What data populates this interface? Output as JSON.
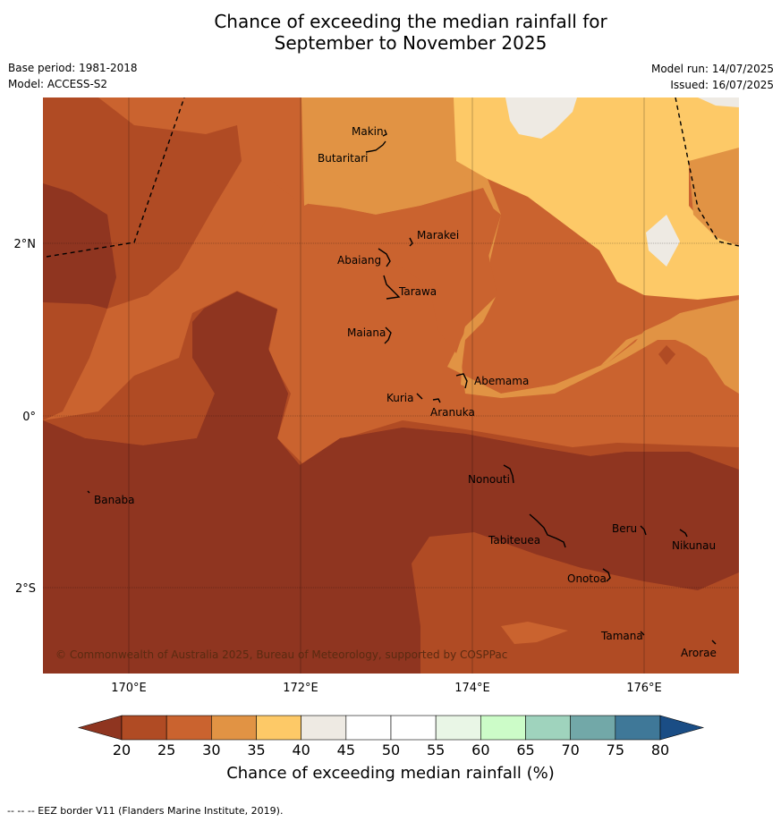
{
  "title_line1": "Chance of exceeding the median rainfall for",
  "title_line2": "September to November 2025",
  "base_period": "Base period: 1981-2018",
  "model": "Model: ACCESS-S2",
  "model_run": "Model run: 14/07/2025",
  "issued": "Issued: 16/07/2025",
  "map": {
    "lon_ticks": [
      "170°E",
      "172°E",
      "174°E",
      "176°E"
    ],
    "lat_ticks": [
      "2°N",
      "0°",
      "2°S"
    ],
    "places": [
      "Makin",
      "Butaritari",
      "Marakei",
      "Abaiang",
      "Tarawa",
      "Maiana",
      "Abemama",
      "Kuria",
      "Aranuka",
      "Nonouti",
      "Banaba",
      "Beru",
      "Nikunau",
      "Tabiteuea",
      "Onotoa",
      "Tamana",
      "Arorae"
    ],
    "copyright": "© Commonwealth of Australia 2025, Bureau of Meteorology, supported by COSPPac"
  },
  "colorbar": {
    "ticks": [
      "20",
      "25",
      "30",
      "35",
      "40",
      "45",
      "50",
      "55",
      "60",
      "65",
      "70",
      "75",
      "80"
    ],
    "colors": [
      "#b04b24",
      "#ca632f",
      "#e19344",
      "#fdc967",
      "#eeeae3",
      "#ffffff",
      "#ffffff",
      "#e9f6e6",
      "#ccfcc8",
      "#9fd3bd",
      "#72a8a8",
      "#3f7898"
    ],
    "low_color": "#8f3520",
    "high_color": "#1a4d85",
    "label": "Chance of exceeding median rainfall (%)"
  },
  "footnote": "--  --  -- EEZ border V11 (Flanders Marine Institute, 2019)."
}
